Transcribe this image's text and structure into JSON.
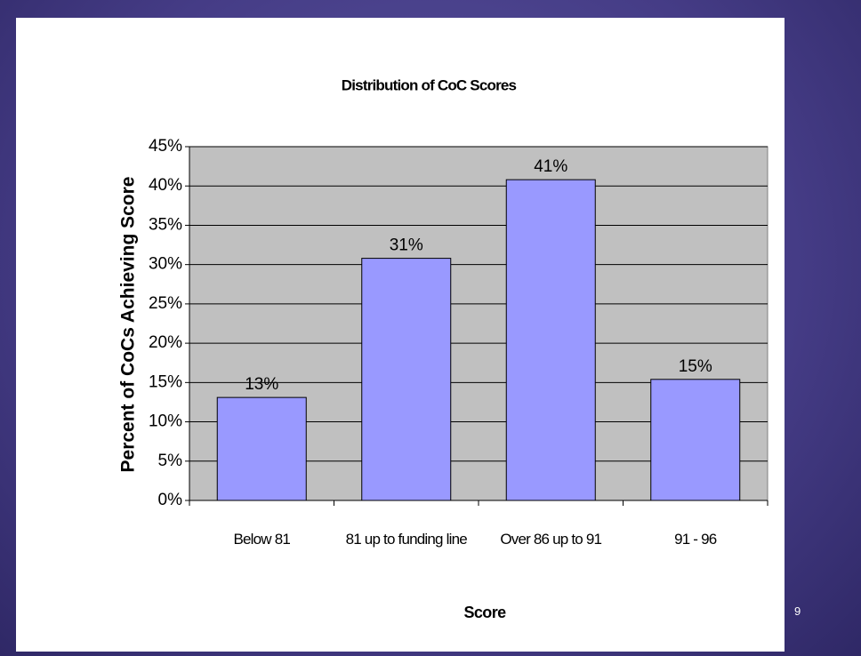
{
  "chart_data": {
    "type": "bar",
    "title": "Distribution of CoC Scores",
    "x_label": "Score",
    "y_label": "Percent of CoCs Achieving Score",
    "categories": [
      "Below 81",
      "81 up to funding line",
      "Over 86 up to 91",
      "91 - 96"
    ],
    "values": [
      13.1,
      30.8,
      40.8,
      15.4
    ],
    "value_labels": [
      "13%",
      "31%",
      "41%",
      "15%"
    ],
    "color": "#9999ff",
    "plot_background": "#c0c0c0",
    "ylim": [
      0,
      45
    ],
    "yticks": [
      {
        "value": 0,
        "label": "0%"
      },
      {
        "value": 5,
        "label": "5%"
      },
      {
        "value": 10,
        "label": "10%"
      },
      {
        "value": 15,
        "label": "15%"
      },
      {
        "value": 20,
        "label": "20%"
      },
      {
        "value": 25,
        "label": "25%"
      },
      {
        "value": 30,
        "label": "30%"
      },
      {
        "value": 35,
        "label": "35%"
      },
      {
        "value": 40,
        "label": "40%"
      },
      {
        "value": 45,
        "label": "45%"
      }
    ],
    "grid": true
  },
  "page_number": "9"
}
